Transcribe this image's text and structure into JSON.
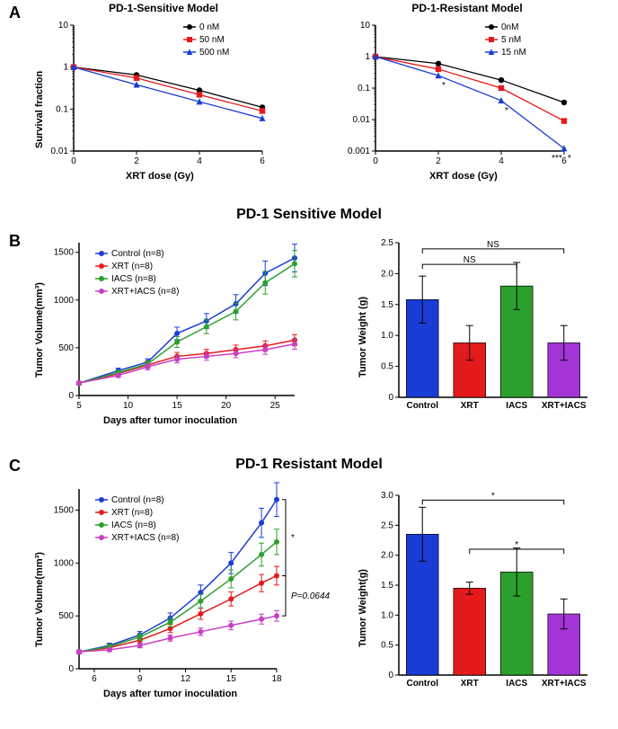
{
  "letters": {
    "A": "A",
    "B": "B",
    "C": "C"
  },
  "sectionTitles": {
    "sensitive": "PD-1 Sensitive Model",
    "resistant": "PD-1 Resistant Model"
  },
  "A": {
    "left": {
      "title": "PD-1-Sensitive Model",
      "xlabel": "XRT dose (Gy)",
      "ylabel": "Survival fraction",
      "xlim": [
        0,
        6
      ],
      "xticks": [
        0,
        2,
        4,
        6
      ],
      "ylim": [
        0.01,
        10
      ],
      "yticks": [
        0.01,
        0.1,
        1,
        10
      ],
      "yticklabels": [
        "0.01",
        "0.1",
        "1",
        "10"
      ],
      "series": [
        {
          "name": "0 nM",
          "color": "#000000",
          "marker": "circle",
          "x": [
            0,
            2,
            4,
            6
          ],
          "y": [
            1,
            0.65,
            0.28,
            0.11
          ]
        },
        {
          "name": "50 nM",
          "color": "#e41a1c",
          "marker": "square",
          "x": [
            0,
            2,
            4,
            6
          ],
          "y": [
            1,
            0.55,
            0.22,
            0.09
          ]
        },
        {
          "name": "500 nM",
          "color": "#1a3cd6",
          "marker": "triangle",
          "x": [
            0,
            2,
            4,
            6
          ],
          "y": [
            1,
            0.38,
            0.15,
            0.06
          ]
        }
      ]
    },
    "right": {
      "title": "PD-1-Resistant Model",
      "xlabel": "XRT dose (Gy)",
      "ylabel": "",
      "xlim": [
        0,
        6
      ],
      "xticks": [
        0,
        2,
        4,
        6
      ],
      "ylim": [
        0.001,
        10
      ],
      "yticks": [
        0.001,
        0.01,
        0.1,
        1,
        10
      ],
      "yticklabels": [
        "0.001",
        "0.01",
        "0.1",
        "1",
        "10"
      ],
      "series": [
        {
          "name": "0nM",
          "color": "#000000",
          "marker": "circle",
          "x": [
            0,
            2,
            4,
            6
          ],
          "y": [
            1,
            0.6,
            0.18,
            0.035
          ]
        },
        {
          "name": "5 nM",
          "color": "#e41a1c",
          "marker": "square",
          "x": [
            0,
            2,
            4,
            6
          ],
          "y": [
            1,
            0.4,
            0.1,
            0.009
          ]
        },
        {
          "name": "15 nM",
          "color": "#1a3cd6",
          "marker": "triangle",
          "x": [
            0,
            2,
            4,
            6
          ],
          "y": [
            1,
            0.25,
            0.04,
            0.0012
          ]
        }
      ],
      "sig": [
        {
          "x": 2,
          "label": "*"
        },
        {
          "x": 4,
          "label": "*"
        },
        {
          "x": 6,
          "label": "*"
        },
        {
          "x": 6,
          "label": "***",
          "shift": -8
        }
      ]
    }
  },
  "B": {
    "growth": {
      "xlabel": "Days after tumor inoculation",
      "ylabel": "Tumor Volume(mm³)",
      "xlim": [
        5,
        27
      ],
      "xticks": [
        5,
        10,
        15,
        20,
        25
      ],
      "ylim": [
        0,
        1600
      ],
      "yticks": [
        0,
        500,
        1000,
        1500
      ],
      "series": [
        {
          "name": "Control (n=8)",
          "color": "#1a3cd6",
          "x": [
            5,
            9,
            12,
            15,
            18,
            21,
            24,
            27
          ],
          "y": [
            130,
            260,
            350,
            650,
            780,
            960,
            1280,
            1440
          ]
        },
        {
          "name": "XRT (n=8)",
          "color": "#e41a1c",
          "x": [
            5,
            9,
            12,
            15,
            18,
            21,
            24,
            27
          ],
          "y": [
            130,
            230,
            320,
            410,
            440,
            480,
            520,
            580
          ]
        },
        {
          "name": "IACS (n=8)",
          "color": "#2ca02c",
          "x": [
            5,
            9,
            12,
            15,
            18,
            21,
            24,
            27
          ],
          "y": [
            130,
            240,
            330,
            560,
            720,
            880,
            1180,
            1380
          ]
        },
        {
          "name": "XRT+IACS (n=8)",
          "color": "#c83fc3",
          "x": [
            5,
            9,
            12,
            15,
            18,
            21,
            24,
            27
          ],
          "y": [
            130,
            210,
            300,
            380,
            410,
            440,
            480,
            540
          ]
        }
      ]
    },
    "bars": {
      "ylabel": "Tumor Weight (g)",
      "ylim": [
        0,
        2.5
      ],
      "yticks": [
        0,
        0.5,
        1.0,
        1.5,
        2.0,
        2.5
      ],
      "yticklabels": [
        "0",
        "0.5",
        "1.0",
        "1.5",
        "2.0",
        "2.5"
      ],
      "categories": [
        "Control",
        "XRT",
        "IACS",
        "XRT+IACS"
      ],
      "colors": [
        "#1a3cd6",
        "#e41a1c",
        "#2ca02c",
        "#a335d6"
      ],
      "values": [
        1.58,
        0.88,
        1.8,
        0.88
      ],
      "err": [
        0.38,
        0.28,
        0.38,
        0.28
      ],
      "sig": [
        {
          "from": 0,
          "to": 2,
          "label": "NS",
          "y": 2.15
        },
        {
          "from": 0,
          "to": 3,
          "label": "NS",
          "y": 2.4
        }
      ]
    }
  },
  "C": {
    "growth": {
      "xlabel": "Days after tumor inoculation",
      "ylabel": "Tumor Volume(mm³)",
      "xlim": [
        5,
        18
      ],
      "xticks": [
        6,
        9,
        12,
        15,
        18
      ],
      "ylim": [
        0,
        1700
      ],
      "yticks": [
        0,
        500,
        1000,
        1500
      ],
      "series": [
        {
          "name": "Control (n=8)",
          "color": "#1a3cd6",
          "x": [
            5,
            7,
            9,
            11,
            13,
            15,
            17,
            18
          ],
          "y": [
            160,
            220,
            320,
            480,
            720,
            1000,
            1380,
            1600
          ]
        },
        {
          "name": "XRT (n=8)",
          "color": "#e41a1c",
          "x": [
            5,
            7,
            9,
            11,
            13,
            15,
            17,
            18
          ],
          "y": [
            160,
            200,
            270,
            380,
            520,
            660,
            810,
            880
          ]
        },
        {
          "name": "IACS (n=8)",
          "color": "#2ca02c",
          "x": [
            5,
            7,
            9,
            11,
            13,
            15,
            17,
            18
          ],
          "y": [
            160,
            210,
            300,
            440,
            640,
            850,
            1080,
            1200
          ]
        },
        {
          "name": "XRT+IACS (n=8)",
          "color": "#c83fc3",
          "x": [
            5,
            7,
            9,
            11,
            13,
            15,
            17,
            18
          ],
          "y": [
            160,
            180,
            220,
            290,
            350,
            410,
            470,
            500
          ]
        }
      ],
      "side_sig": [
        {
          "label": "*",
          "y": 1240
        },
        {
          "label": "P=0.0644",
          "y": 690,
          "italic": true
        }
      ]
    },
    "bars": {
      "ylabel": "Tumor Weight(g)",
      "ylim": [
        0,
        3.0
      ],
      "yticks": [
        0,
        0.5,
        1.0,
        1.5,
        2.0,
        2.5,
        3.0
      ],
      "yticklabels": [
        "0",
        "0.5",
        "1.0",
        "1.5",
        "2.0",
        "2.5",
        "3.0"
      ],
      "categories": [
        "Control",
        "XRT",
        "IACS",
        "XRT+IACS"
      ],
      "colors": [
        "#1a3cd6",
        "#e41a1c",
        "#2ca02c",
        "#a335d6"
      ],
      "values": [
        2.35,
        1.45,
        1.72,
        1.02
      ],
      "err": [
        0.45,
        0.1,
        0.4,
        0.25
      ],
      "sig": [
        {
          "from": 0,
          "to": 3,
          "label": "*",
          "y": 2.92
        },
        {
          "from": 1,
          "to": 3,
          "label": "*",
          "y": 2.1
        }
      ]
    }
  },
  "style": {
    "axisColor": "#000",
    "lineWidth": 1.3,
    "markerSize": 3.2,
    "errCap": 3
  }
}
